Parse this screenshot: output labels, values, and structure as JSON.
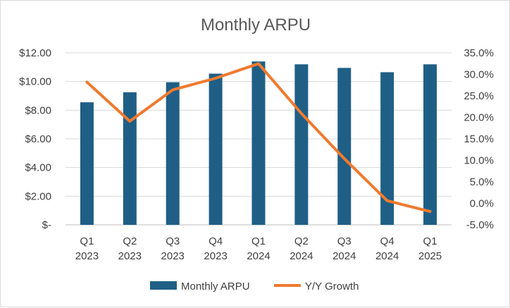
{
  "chart_data": {
    "type": "bar+line",
    "title": "Monthly ARPU",
    "categories": [
      [
        "Q1",
        "2023"
      ],
      [
        "Q2",
        "2023"
      ],
      [
        "Q3",
        "2023"
      ],
      [
        "Q4",
        "2023"
      ],
      [
        "Q1",
        "2024"
      ],
      [
        "Q2",
        "2024"
      ],
      [
        "Q3",
        "2024"
      ],
      [
        "Q4",
        "2024"
      ],
      [
        "Q1",
        "2025"
      ]
    ],
    "series": [
      {
        "name": "Monthly ARPU",
        "type": "bar",
        "axis": "left",
        "color": "#1f5f86",
        "values": [
          8.55,
          9.25,
          9.95,
          10.55,
          11.4,
          11.2,
          10.95,
          10.65,
          11.2
        ]
      },
      {
        "name": "Y/Y Growth",
        "type": "line",
        "axis": "right",
        "color": "#f07a2e",
        "values": [
          28.2,
          19.1,
          26.4,
          29.1,
          32.5,
          20.9,
          10.4,
          0.6,
          -1.9
        ]
      }
    ],
    "left_axis": {
      "ylim": [
        0,
        12
      ],
      "ticks": [
        0,
        2,
        4,
        6,
        8,
        10,
        12
      ],
      "tick_labels": [
        "$-",
        "$2.00",
        "$4.00",
        "$6.00",
        "$8.00",
        "$10.00",
        "$12.00"
      ]
    },
    "right_axis": {
      "ylim": [
        -5,
        35
      ],
      "ticks": [
        -5,
        0,
        5,
        10,
        15,
        20,
        25,
        30,
        35
      ],
      "tick_labels": [
        "-5.0%",
        "0.0%",
        "5.0%",
        "10.0%",
        "15.0%",
        "20.0%",
        "25.0%",
        "30.0%",
        "35.0%"
      ]
    },
    "grid": true,
    "legend_position": "bottom"
  }
}
